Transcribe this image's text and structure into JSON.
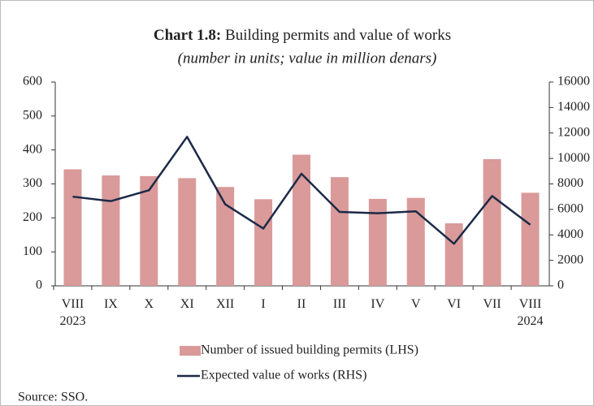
{
  "chart_data": {
    "type": "bar_line",
    "title_label": "Chart 1.8:",
    "title": "Building permits and value of works",
    "subtitle": "(number in units; value in million denars)",
    "categories": [
      "VIII 2023",
      "IX",
      "X",
      "XI",
      "XII",
      "I",
      "II",
      "III",
      "IV",
      "V",
      "VI",
      "VII",
      "VIII 2024"
    ],
    "series": [
      {
        "name": "Number of issued building permits (LHS)",
        "type": "bar",
        "color": "#d99a99",
        "values": [
          343,
          325,
          323,
          317,
          291,
          255,
          386,
          320,
          256,
          259,
          184,
          373,
          274
        ]
      },
      {
        "name": "Expected value of works (RHS)",
        "type": "line",
        "axis": "y2",
        "color": "#1c2a48",
        "values": [
          7000,
          6650,
          7500,
          11700,
          6400,
          4500,
          8800,
          5800,
          5700,
          5850,
          3300,
          7050,
          4800
        ]
      }
    ],
    "ylim": [
      0,
      600
    ],
    "yticks": [
      0,
      100,
      200,
      300,
      400,
      500,
      600
    ],
    "y2lim": [
      0,
      16000
    ],
    "y2ticks": [
      0,
      2000,
      4000,
      6000,
      8000,
      10000,
      12000,
      14000,
      16000
    ],
    "grid": false,
    "source": "Source: SSO."
  }
}
